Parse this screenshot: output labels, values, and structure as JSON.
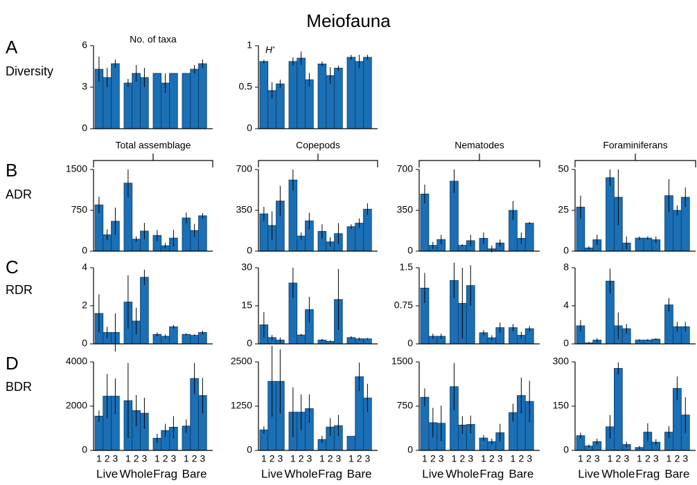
{
  "title": "Meiofauna",
  "rows": [
    {
      "letter": "A",
      "label": "Diversity"
    },
    {
      "letter": "B",
      "label": "ADR"
    },
    {
      "letter": "C",
      "label": "RDR"
    },
    {
      "letter": "D",
      "label": "BDR"
    }
  ],
  "column_titles": [
    "Total assemblage",
    "Copepods",
    "Nematodes",
    "Foraminiferans"
  ],
  "groups": [
    "Live",
    "Whole",
    "Frag",
    "Bare"
  ],
  "subgroups": [
    "1",
    "2",
    "3"
  ],
  "chart_data": [
    {
      "type": "bar",
      "title": "No. of taxa",
      "color": "#1a6fb5",
      "ylim": [
        0,
        6
      ],
      "yticks": [
        0,
        3,
        6
      ],
      "values": [
        4.3,
        3.7,
        4.7,
        3.3,
        4.0,
        3.7,
        4.0,
        3.3,
        4.0,
        4.0,
        4.3,
        4.7
      ],
      "errors": [
        0.9,
        0.7,
        0.3,
        0.3,
        0.6,
        0.7,
        0,
        0.7,
        0,
        0,
        0.3,
        0.3
      ]
    },
    {
      "type": "bar",
      "title": "H'",
      "color": "#1a6fb5",
      "ylim": [
        0,
        1
      ],
      "yticks": [
        0,
        0.5,
        1
      ],
      "values": [
        0.81,
        0.46,
        0.54,
        0.81,
        0.85,
        0.59,
        0.78,
        0.64,
        0.73,
        0.86,
        0.81,
        0.86
      ],
      "errors": [
        0.02,
        0.1,
        0.05,
        0.05,
        0.08,
        0.08,
        0.03,
        0.1,
        0.03,
        0.03,
        0.08,
        0.03
      ]
    },
    {
      "type": "bar",
      "color": "#1a6fb5",
      "ylim": [
        0,
        1500
      ],
      "yticks": [
        0,
        750,
        1500
      ],
      "values": [
        850,
        300,
        550,
        1250,
        220,
        370,
        290,
        100,
        240,
        610,
        380,
        650
      ],
      "errors": [
        150,
        100,
        250,
        250,
        50,
        150,
        100,
        50,
        150,
        100,
        120,
        50
      ]
    },
    {
      "type": "bar",
      "color": "#1a6fb5",
      "ylim": [
        0,
        700
      ],
      "yticks": [
        0,
        350,
        700
      ],
      "values": [
        320,
        220,
        430,
        610,
        130,
        260,
        170,
        80,
        150,
        210,
        240,
        360
      ],
      "errors": [
        60,
        120,
        130,
        90,
        30,
        70,
        60,
        40,
        90,
        20,
        40,
        50
      ]
    },
    {
      "type": "bar",
      "color": "#1a6fb5",
      "ylim": [
        0,
        700
      ],
      "yticks": [
        0,
        350,
        700
      ],
      "values": [
        490,
        50,
        100,
        600,
        50,
        90,
        110,
        20,
        70,
        350,
        110,
        240
      ],
      "errors": [
        80,
        30,
        40,
        100,
        10,
        50,
        50,
        30,
        30,
        80,
        50,
        10
      ]
    },
    {
      "type": "bar",
      "color": "#1a6fb5",
      "ylim": [
        0,
        50
      ],
      "yticks": [
        0,
        25,
        50
      ],
      "values": [
        27,
        2,
        7,
        45,
        33,
        5,
        8,
        8,
        7,
        34,
        25,
        33
      ],
      "errors": [
        7,
        1,
        3,
        5,
        17,
        4,
        1,
        1,
        2,
        10,
        3,
        6
      ]
    },
    {
      "type": "bar",
      "color": "#1a6fb5",
      "ylim": [
        0,
        4
      ],
      "yticks": [
        0,
        2,
        4
      ],
      "values": [
        1.6,
        0.6,
        0.6,
        2.2,
        1.2,
        3.5,
        0.5,
        0.4,
        0.9,
        0.5,
        0.45,
        0.6
      ],
      "errors": [
        1.0,
        0.3,
        1.0,
        1.4,
        0.7,
        0.4,
        0.1,
        0.1,
        0.1,
        0.05,
        0.05,
        0.1
      ]
    },
    {
      "type": "bar",
      "color": "#1a6fb5",
      "ylim": [
        0,
        30
      ],
      "yticks": [
        0,
        15,
        30
      ],
      "values": [
        7.5,
        2.5,
        1.5,
        24,
        3.5,
        13.5,
        1.5,
        1,
        17.5,
        2.5,
        2,
        2
      ],
      "errors": [
        5,
        1,
        1,
        6,
        0.5,
        5,
        0.5,
        0.3,
        12,
        0.5,
        0.5,
        0.3
      ]
    },
    {
      "type": "bar",
      "color": "#1a6fb5",
      "ylim": [
        0,
        1.5
      ],
      "yticks": [
        0,
        0.75,
        1.5
      ],
      "values": [
        1.1,
        0.15,
        0.15,
        1.25,
        0.8,
        1.15,
        0.22,
        0.12,
        0.32,
        0.32,
        0.17,
        0.3
      ],
      "errors": [
        0.3,
        0.05,
        0.05,
        0.35,
        0.7,
        0.4,
        0.05,
        0.05,
        0.1,
        0.07,
        0.07,
        0.05
      ]
    },
    {
      "type": "bar",
      "color": "#1a6fb5",
      "ylim": [
        0,
        8
      ],
      "yticks": [
        0,
        4,
        8
      ],
      "values": [
        1.9,
        0.1,
        0.4,
        6.6,
        1.9,
        1.6,
        0.4,
        0.4,
        0.5,
        4.1,
        1.8,
        1.8
      ],
      "errors": [
        0.6,
        0.1,
        0.2,
        1.3,
        1.4,
        0.5,
        0.1,
        0.1,
        0.1,
        0.7,
        0.5,
        0.5
      ]
    },
    {
      "type": "bar",
      "color": "#1a6fb5",
      "ylim": [
        0,
        4000
      ],
      "yticks": [
        0,
        2000,
        4000
      ],
      "values": [
        1550,
        2450,
        2450,
        2250,
        1800,
        1680,
        550,
        900,
        1050,
        1100,
        3250,
        2480
      ],
      "errors": [
        250,
        1000,
        800,
        1700,
        700,
        700,
        200,
        300,
        500,
        300,
        700,
        800
      ]
    },
    {
      "type": "bar",
      "color": "#1a6fb5",
      "ylim": [
        0,
        2500
      ],
      "yticks": [
        0,
        1250,
        2500
      ],
      "values": [
        580,
        1950,
        1950,
        1080,
        1080,
        1180,
        310,
        660,
        700,
        400,
        2080,
        1480
      ],
      "errors": [
        100,
        1000,
        900,
        700,
        500,
        400,
        100,
        250,
        300,
        0,
        400,
        400
      ]
    },
    {
      "type": "bar",
      "color": "#1a6fb5",
      "ylim": [
        0,
        1500
      ],
      "yticks": [
        0,
        750,
        1500
      ],
      "values": [
        900,
        470,
        460,
        1080,
        430,
        440,
        210,
        150,
        300,
        640,
        930,
        830
      ],
      "errors": [
        150,
        250,
        300,
        400,
        150,
        150,
        50,
        50,
        150,
        150,
        300,
        350
      ]
    },
    {
      "type": "bar",
      "color": "#1a6fb5",
      "ylim": [
        0,
        300
      ],
      "yticks": [
        0,
        150,
        300
      ],
      "values": [
        50,
        15,
        30,
        80,
        278,
        20,
        10,
        62,
        28,
        62,
        210,
        120
      ],
      "errors": [
        10,
        5,
        10,
        40,
        20,
        10,
        5,
        30,
        10,
        20,
        40,
        60
      ]
    }
  ]
}
